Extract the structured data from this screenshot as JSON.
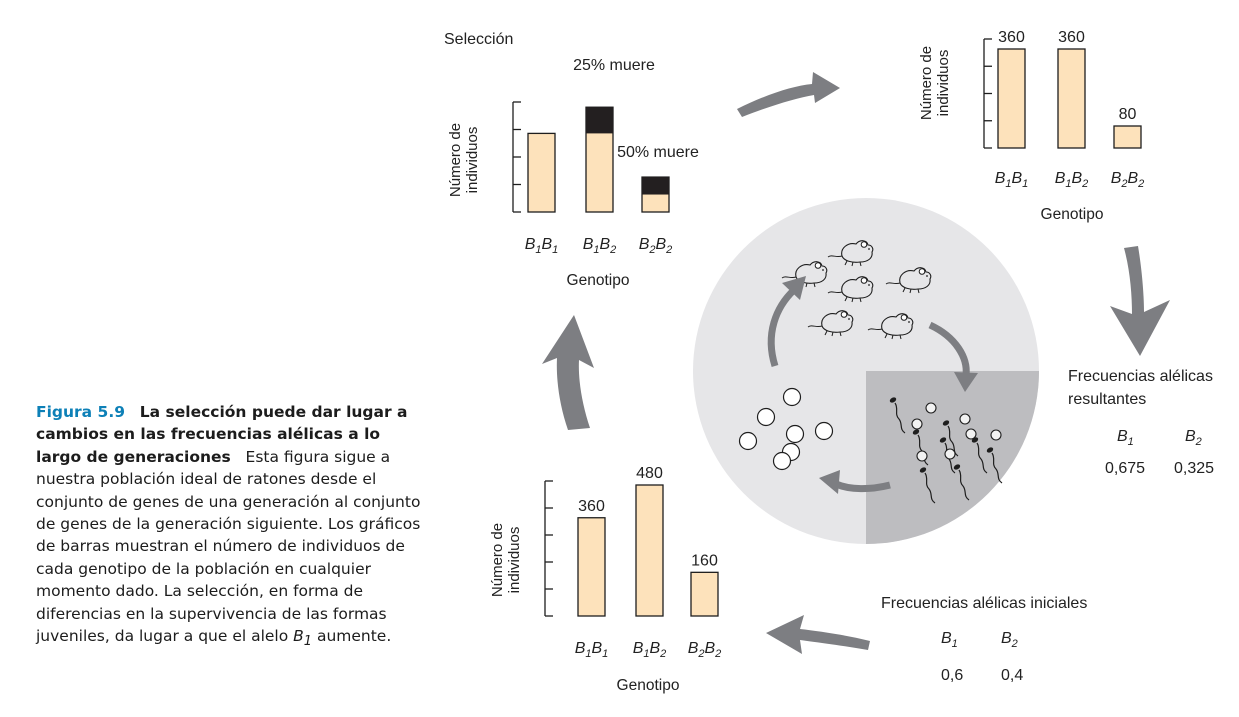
{
  "colors": {
    "bar_fill": "#fde2bb",
    "dead_fill": "#231f20",
    "arrow": "#7d7e82",
    "caption_accent": "#0d80b7",
    "circle_light": "#e6e6e8",
    "circle_dark": "#bdbdc0"
  },
  "selection_chart": {
    "title": "Selección",
    "ylabel_line1": "Número de",
    "ylabel_line2": "individuos",
    "xlabel": "Genotipo",
    "annotation_b1b2": "25% muere",
    "annotation_b2b2": "50% muere",
    "genotypes": [
      {
        "a": "B",
        "as": "1",
        "b": "B",
        "bs": "1"
      },
      {
        "a": "B",
        "as": "1",
        "b": "B",
        "bs": "2"
      },
      {
        "a": "B",
        "as": "2",
        "b": "B",
        "bs": "2"
      }
    ]
  },
  "chart_data": [
    {
      "type": "bar",
      "title": "Selección",
      "categories": [
        "B1B1",
        "B1B2",
        "B2B2"
      ],
      "values": [
        360,
        480,
        160
      ],
      "survivors": [
        360,
        360,
        80
      ],
      "percent_dying": [
        0,
        25,
        50
      ],
      "xlabel": "Genotipo",
      "ylabel": "Número de individuos",
      "ylim": [
        0,
        600
      ]
    },
    {
      "type": "bar",
      "categories": [
        "B1B1",
        "B1B2",
        "B2B2"
      ],
      "values": [
        360,
        360,
        80
      ],
      "data_labels": [
        "360",
        "360",
        "80"
      ],
      "xlabel": "Genotipo",
      "ylabel": "Número de individuos",
      "ylim": [
        0,
        500
      ]
    },
    {
      "type": "bar",
      "categories": [
        "B1B1",
        "B1B2",
        "B2B2"
      ],
      "values": [
        360,
        480,
        160
      ],
      "data_labels": [
        "360",
        "480",
        "160"
      ],
      "xlabel": "Genotipo",
      "ylabel": "Número de individuos",
      "ylim": [
        0,
        600
      ]
    }
  ],
  "result_chart": {
    "ylabel_line1": "Número de",
    "ylabel_line2": "individuos",
    "xlabel": "Genotipo"
  },
  "initial_chart": {
    "ylabel_line1": "Número de",
    "ylabel_line2": "individuos",
    "xlabel": "Genotipo"
  },
  "resulting_frequencies": {
    "title_line1": "Frecuencias alélicas",
    "title_line2": "resultantes",
    "b1_symbol": "B",
    "b1_sub": "1",
    "b2_symbol": "B",
    "b2_sub": "2",
    "b1_value": "0,675",
    "b2_value": "0,325"
  },
  "initial_frequencies": {
    "title": "Frecuencias alélicas iniciales",
    "b1_symbol": "B",
    "b1_sub": "1",
    "b2_symbol": "B",
    "b2_sub": "2",
    "b1_value": "0,6",
    "b2_value": "0,4"
  },
  "lifecycle_icons": [
    "mouse-icon",
    "sperm-icon",
    "egg-icon",
    "cycle-arrow-icon"
  ],
  "caption": {
    "figure_number": "Figura 5.9",
    "title": "La selección puede dar lugar a cambios en las frecuencias alélicas a lo largo de generaciones",
    "body_before": "Esta figura sigue a nuestra población ideal de ratones desde el conjunto de genes de una generación al conjunto de genes de la generación siguiente. Los gráficos de barras muestran el número de individuos de cada genotipo de la población en cualquier momento dado. La selección, en forma de diferencias en la supervivencia de las formas juveniles, da lugar a que el alelo ",
    "allele": "B",
    "allele_sub": "1",
    "body_after": " aumente."
  }
}
